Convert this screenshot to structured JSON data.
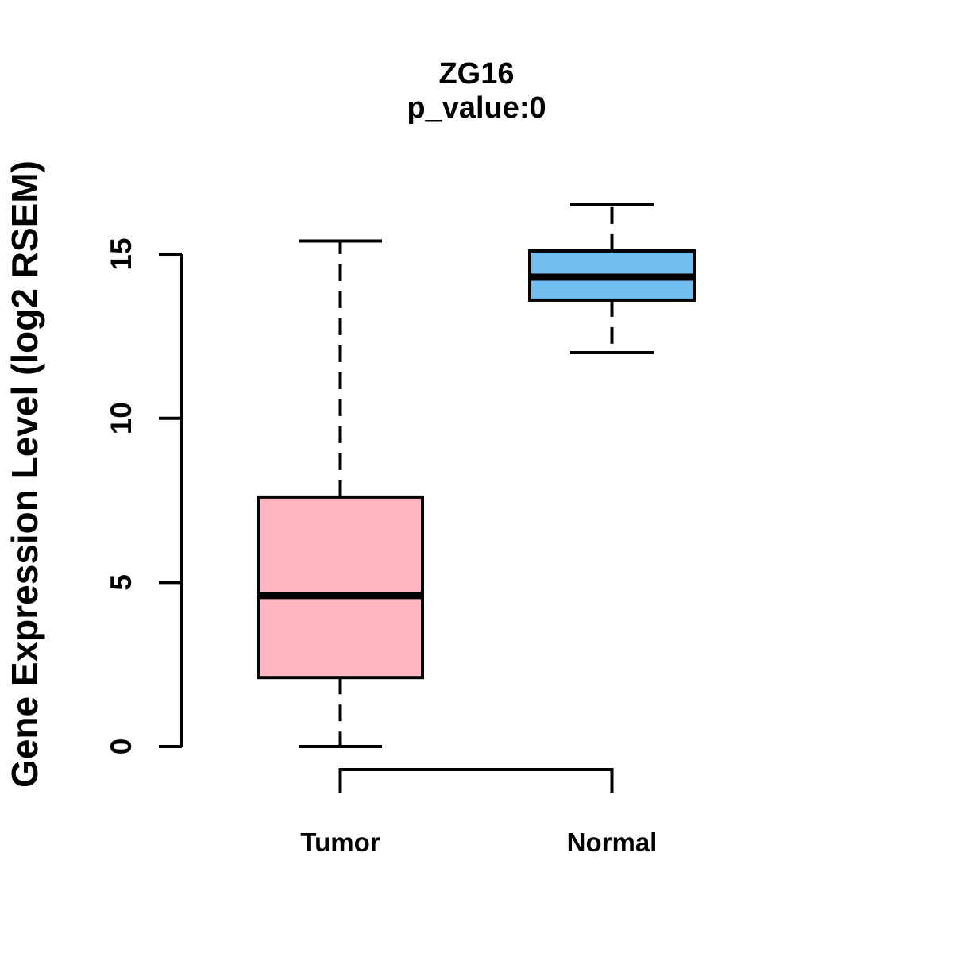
{
  "chart_data": {
    "type": "boxplot",
    "title": "ZG16",
    "subtitle": "p_value:0",
    "ylabel": "Gene Expression Level (log2 RSEM)",
    "xlabel": "",
    "yticks": [
      0,
      5,
      10,
      15
    ],
    "ylim": [
      0,
      16.8
    ],
    "grid": false,
    "legend": "none",
    "axis_color": "#000000",
    "groups": [
      {
        "label": "Tumor",
        "color": "#FFB6C1",
        "border_color": "#000000",
        "min": 0,
        "q1": 2.1,
        "median": 4.6,
        "q3": 7.6,
        "max": 15.4
      },
      {
        "label": "Normal",
        "color": "#73BEF0",
        "border_color": "#000000",
        "min": 12.0,
        "q1": 13.6,
        "median": 14.3,
        "q3": 15.1,
        "max": 16.5
      }
    ]
  }
}
